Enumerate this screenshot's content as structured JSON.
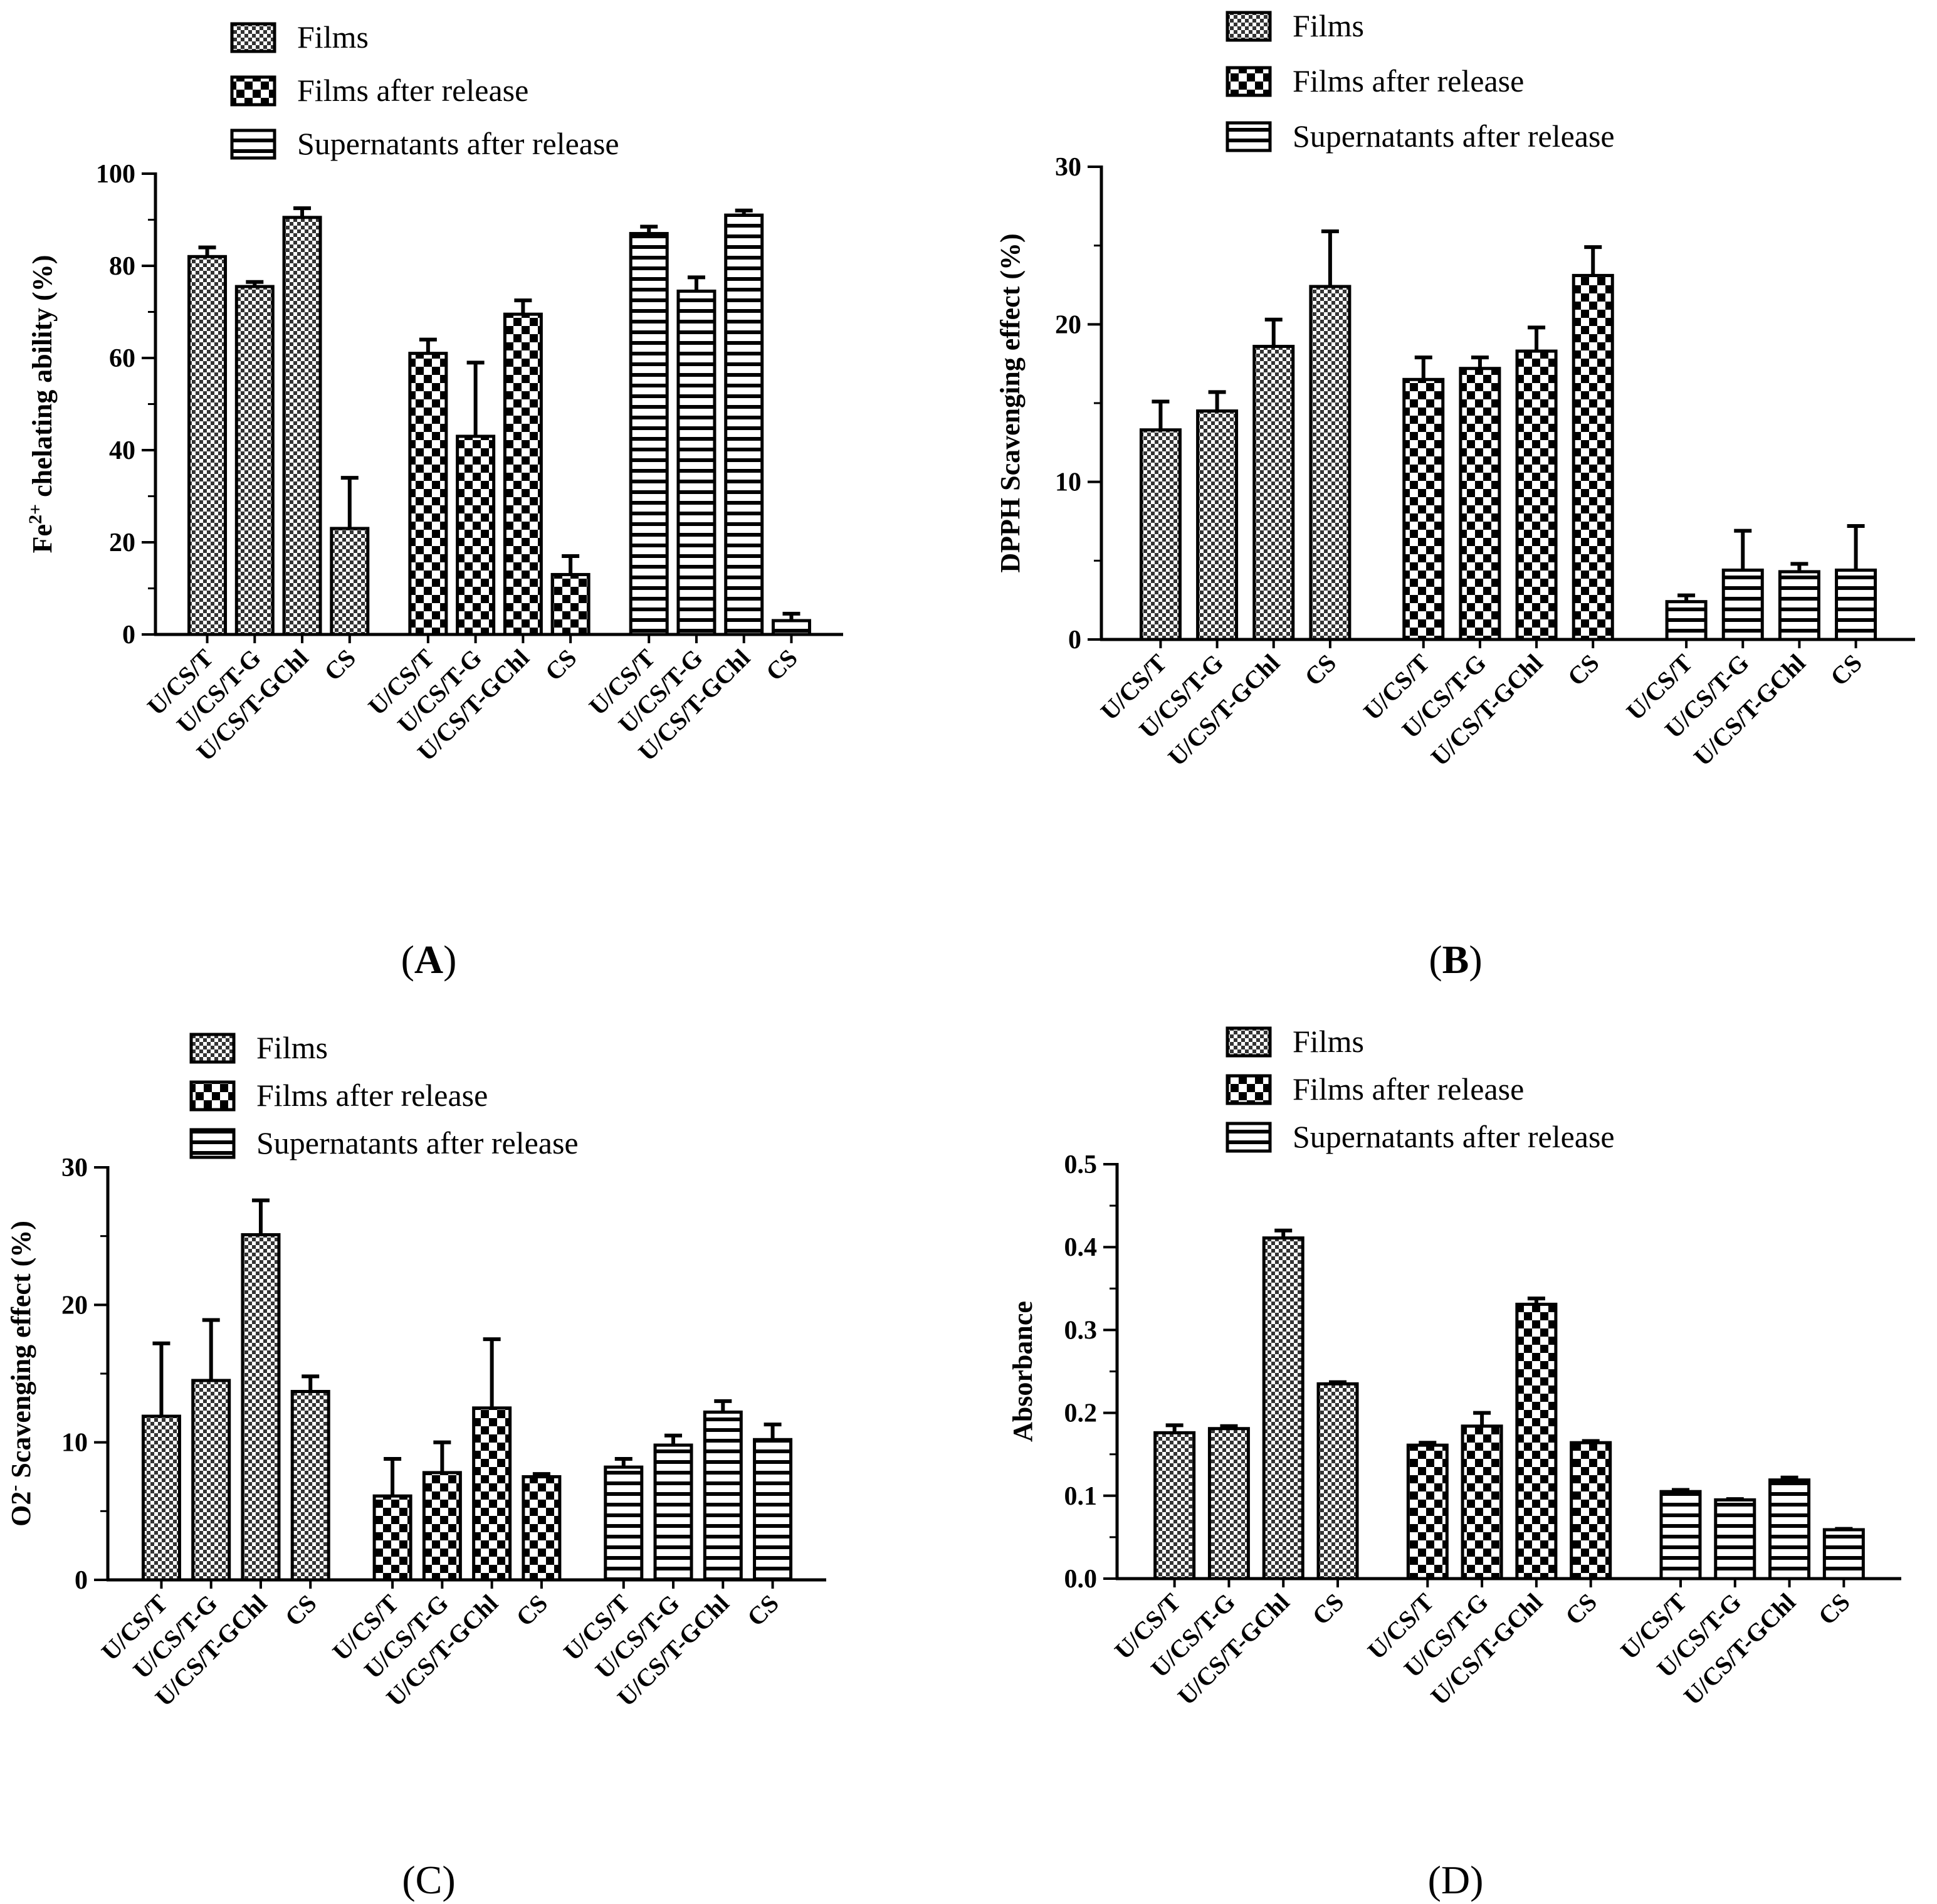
{
  "colors": {
    "ink": "#000000",
    "background": "#ffffff"
  },
  "chart_data": [
    {
      "type": "bar",
      "panel_label": "A",
      "ylabel": "Fe2+ chelating ability (%)",
      "ylabel_main": "Fe",
      "ylabel_sup": "2+",
      "ylabel_rest": " chelating ability (%)",
      "ylim": [
        0,
        100
      ],
      "yticks": [
        "0",
        "20",
        "40",
        "60",
        "80",
        "100"
      ],
      "categories": [
        "U/CS/T",
        "U/CS/T-G",
        "U/CS/T-GChl",
        "CS"
      ],
      "legend_position": "top",
      "series": [
        {
          "name": "Films",
          "pattern": "dense-check",
          "values": [
            82,
            75.5,
            90.5,
            23
          ],
          "errors": [
            2,
            1,
            2,
            11
          ]
        },
        {
          "name": "Films after release",
          "pattern": "check",
          "values": [
            61,
            43,
            69.5,
            13
          ],
          "errors": [
            3,
            16,
            3,
            4
          ]
        },
        {
          "name": "Supernatants after release",
          "pattern": "hlines",
          "values": [
            87,
            74.5,
            91,
            3
          ],
          "errors": [
            1.5,
            3,
            1,
            1.5
          ]
        }
      ]
    },
    {
      "type": "bar",
      "panel_label": "B",
      "ylabel": "DPPH Scavenging effect (%)",
      "ylim": [
        0,
        30
      ],
      "yticks": [
        "0",
        "10",
        "20",
        "30"
      ],
      "categories": [
        "U/CS/T",
        "U/CS/T-G",
        "U/CS/T-GChl",
        "CS"
      ],
      "legend_position": "top",
      "series": [
        {
          "name": "Films",
          "pattern": "dense-check",
          "values": [
            13.3,
            14.5,
            18.6,
            22.4
          ],
          "errors": [
            1.8,
            1.2,
            1.7,
            3.5
          ]
        },
        {
          "name": "Films after release",
          "pattern": "check",
          "values": [
            16.5,
            17.2,
            18.3,
            23.1
          ],
          "errors": [
            1.4,
            0.7,
            1.5,
            1.8
          ]
        },
        {
          "name": "Supernatants after release",
          "pattern": "hlines",
          "values": [
            2.4,
            4.4,
            4.3,
            4.4
          ],
          "errors": [
            0.4,
            2.5,
            0.5,
            2.8
          ]
        }
      ]
    },
    {
      "type": "bar",
      "panel_label": "C",
      "ylabel": "O2- Scavenging effect (%)",
      "ylabel_main": "O2",
      "ylabel_sup": "-",
      "ylabel_rest": " Scavenging effect (%)",
      "ylim": [
        0,
        30
      ],
      "yticks": [
        "0",
        "10",
        "20",
        "30"
      ],
      "categories": [
        "U/CS/T",
        "U/CS/T-G",
        "U/CS/T-GChl",
        "CS"
      ],
      "legend_position": "top",
      "series": [
        {
          "name": "Films",
          "pattern": "dense-check",
          "values": [
            11.9,
            14.5,
            25.1,
            13.7
          ],
          "errors": [
            5.3,
            4.4,
            2.5,
            1.1
          ]
        },
        {
          "name": "Films after release",
          "pattern": "check",
          "values": [
            6.1,
            7.8,
            12.5,
            7.5
          ],
          "errors": [
            2.7,
            2.2,
            5.0,
            0.2
          ]
        },
        {
          "name": "Supernatants after release",
          "pattern": "hlines",
          "values": [
            8.2,
            9.8,
            12.2,
            10.2
          ],
          "errors": [
            0.6,
            0.7,
            0.8,
            1.1
          ]
        }
      ]
    },
    {
      "type": "bar",
      "panel_label": "D",
      "ylabel": "Absorbance",
      "ylim": [
        0,
        0.5
      ],
      "yticks": [
        "0.0",
        "0.1",
        "0.2",
        "0.3",
        "0.4",
        "0.5"
      ],
      "categories": [
        "U/CS/T",
        "U/CS/T-G",
        "U/CS/T-GChl",
        "CS"
      ],
      "legend_position": "top",
      "series": [
        {
          "name": "Films",
          "pattern": "dense-check",
          "values": [
            0.176,
            0.181,
            0.411,
            0.235
          ],
          "errors": [
            0.009,
            0.003,
            0.009,
            0.002
          ]
        },
        {
          "name": "Films after release",
          "pattern": "check",
          "values": [
            0.161,
            0.184,
            0.331,
            0.164
          ],
          "errors": [
            0.003,
            0.016,
            0.007,
            0.002
          ]
        },
        {
          "name": "Supernatants after release",
          "pattern": "hlines",
          "values": [
            0.105,
            0.095,
            0.119,
            0.059
          ],
          "errors": [
            0.002,
            0.001,
            0.003,
            0.001
          ]
        }
      ]
    }
  ]
}
